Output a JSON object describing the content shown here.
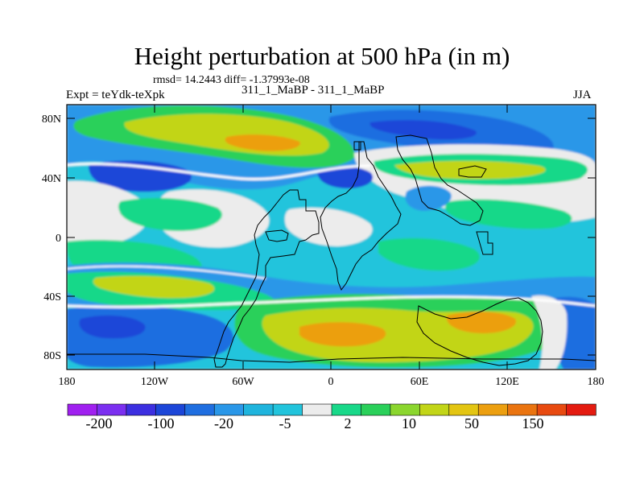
{
  "header": {
    "title": "Height perturbation at 500 hPa (in m)",
    "stats": "rmsd= 14.2443 diff= -1.37993e-08",
    "left_label": "Expt = teYdk-teXpk",
    "center_label": "311_1_MaBP - 311_1_MaBP",
    "right_label": "JJA"
  },
  "axes": {
    "lat_ticks": [
      "80N",
      "40N",
      "0",
      "40S",
      "80S"
    ],
    "lon_ticks": [
      "180",
      "120W",
      "60W",
      "0",
      "60E",
      "120E",
      "180"
    ]
  },
  "colorbar": {
    "labels": [
      "-200",
      "-100",
      "-20",
      "-5",
      "2",
      "10",
      "50",
      "150"
    ],
    "colors": [
      "#a020f0",
      "#7b2ff0",
      "#3c2fe0",
      "#1c46d8",
      "#1f6ee0",
      "#2a97e8",
      "#1fb4dd",
      "#22c4dc",
      "#ececec",
      "#19d889",
      "#2ad05a",
      "#8bd62e",
      "#c2d518",
      "#e3c512",
      "#ec9f10",
      "#ea7410",
      "#e84a10",
      "#e41b10"
    ]
  },
  "map": {
    "colors": {
      "gray": "#ececec",
      "lightblue": "#22c4dc",
      "skyblue": "#2a97e8",
      "blue": "#1f6ee0",
      "darkblue": "#1c46d8",
      "green": "#19d889",
      "limegreen": "#2ad05a",
      "yellowgreen": "#c2d518",
      "orange": "#ec9f10"
    }
  }
}
